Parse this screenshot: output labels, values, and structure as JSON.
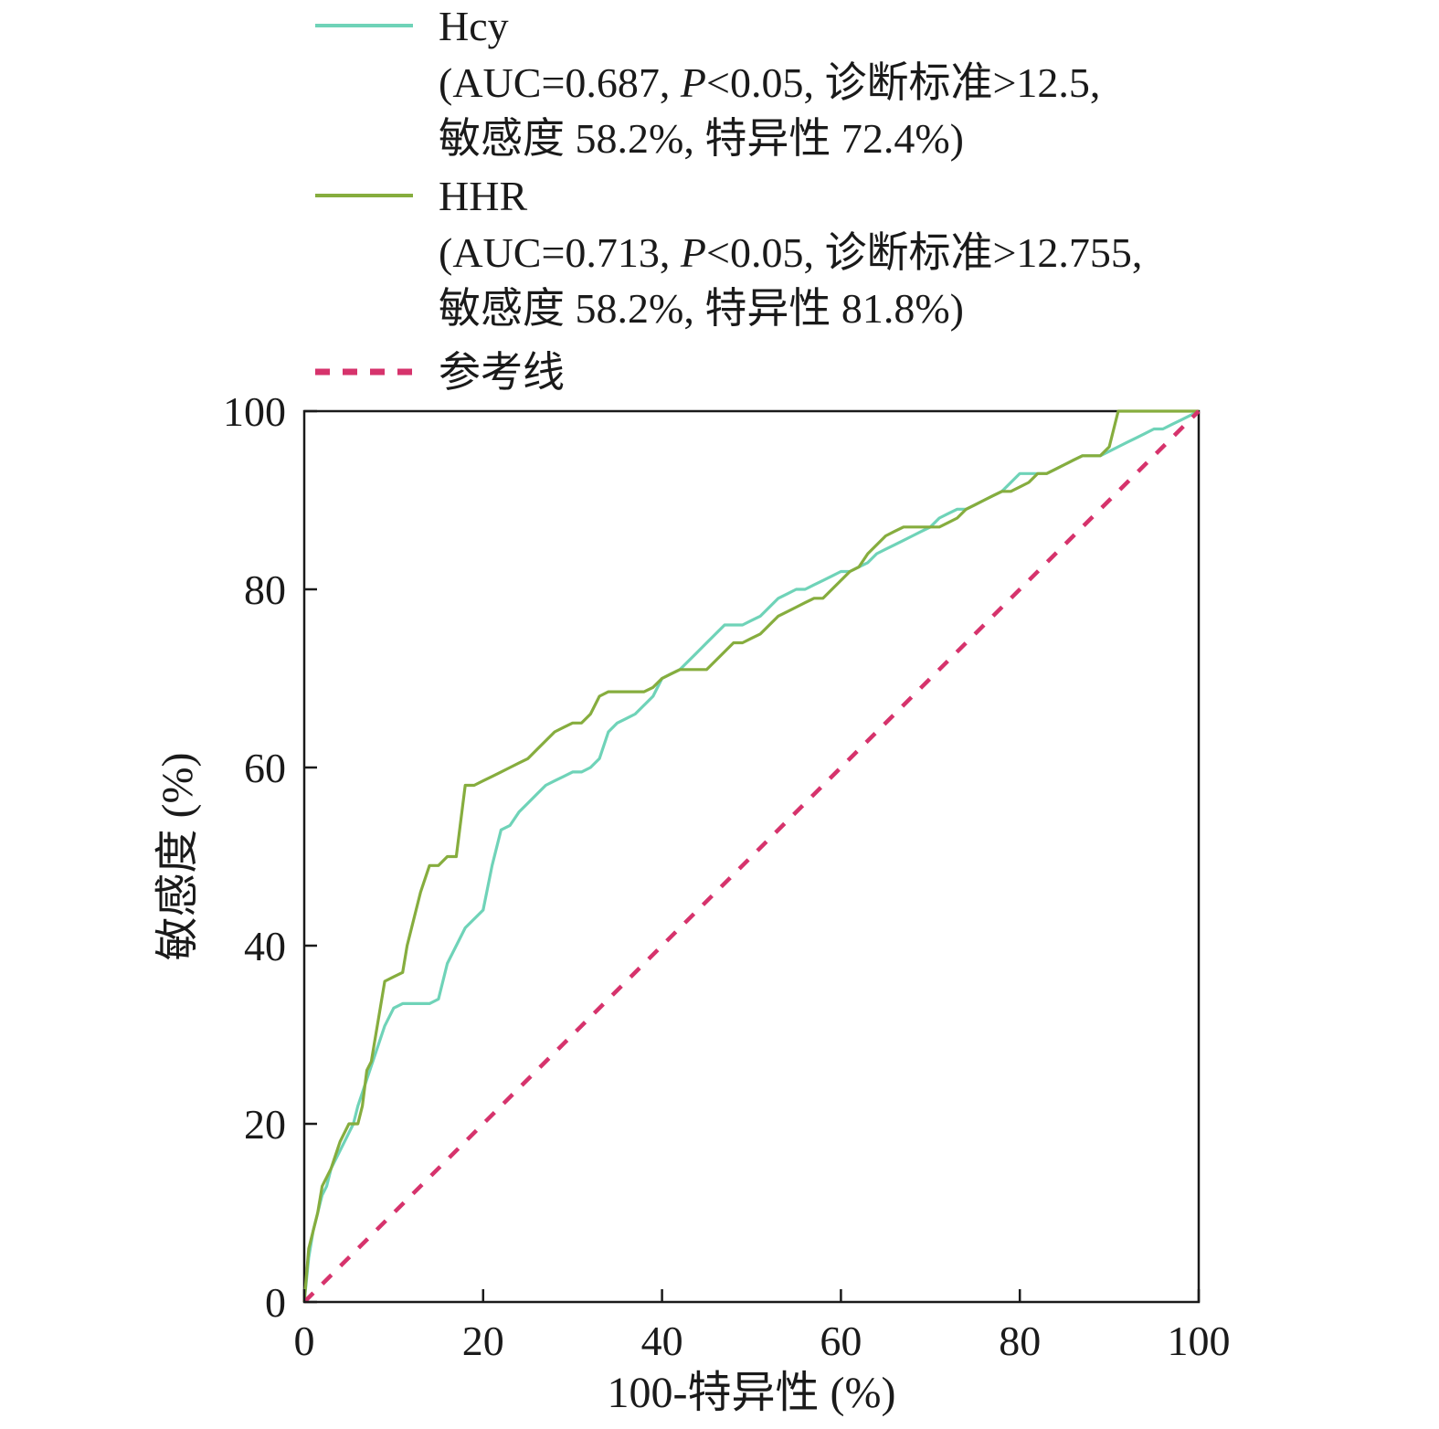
{
  "chart_data": {
    "type": "line",
    "xlabel": "100-特异性 (%)",
    "ylabel": "敏感度 (%)",
    "xlim": [
      0,
      100
    ],
    "ylim": [
      0,
      100
    ],
    "xticks": [
      "0",
      "20",
      "40",
      "60",
      "80",
      "100"
    ],
    "yticks": [
      "0",
      "20",
      "40",
      "60",
      "80",
      "100"
    ],
    "grid": false,
    "legend_position": "top",
    "series": [
      {
        "name": "Hcy",
        "legend_lines": [
          "(AUC=0.687, P<0.05, 诊断标准>12.5,",
          "敏感度 58.2%, 特异性 72.4%)"
        ],
        "color": "#6fd3b8",
        "style": "solid",
        "x": [
          0,
          0.5,
          1,
          1.5,
          2,
          2.5,
          3,
          4,
          5,
          5.5,
          6,
          7,
          8,
          9,
          10,
          11,
          12,
          13,
          14,
          15,
          16,
          17,
          18,
          19,
          20,
          21,
          22,
          23,
          24,
          25,
          26,
          27,
          28,
          29,
          30,
          31,
          32,
          33,
          34,
          35,
          36,
          37,
          38,
          39,
          40,
          41,
          42,
          43,
          44,
          45,
          46,
          47,
          48,
          49,
          50,
          51,
          52,
          53,
          54,
          55,
          56,
          57,
          58,
          59,
          60,
          61,
          62,
          63,
          64,
          65,
          66,
          67,
          68,
          69,
          70,
          71,
          72,
          73,
          74,
          75,
          76,
          77,
          78,
          79,
          80,
          81,
          82,
          83,
          84,
          85,
          86,
          87,
          88,
          89,
          90,
          91,
          92,
          93,
          94,
          95,
          96,
          97,
          98,
          99,
          100
        ],
        "y": [
          0,
          5,
          8,
          10,
          12,
          13,
          15,
          17,
          19,
          20,
          22,
          25,
          28,
          31,
          33,
          33.5,
          33.5,
          33.5,
          33.5,
          34,
          38,
          40,
          42,
          43,
          44,
          49,
          53,
          53.5,
          55,
          56,
          57,
          58,
          58.5,
          59,
          59.5,
          59.5,
          60,
          61,
          64,
          65,
          65.5,
          66,
          67,
          68,
          70,
          70.5,
          71,
          72,
          73,
          74,
          75,
          76,
          76,
          76,
          76.5,
          77,
          78,
          79,
          79.5,
          80,
          80,
          80.5,
          81,
          81.5,
          82,
          82,
          82.5,
          83,
          84,
          84.5,
          85,
          85.5,
          86,
          86.5,
          87,
          88,
          88.5,
          89,
          89,
          89.5,
          90,
          90.5,
          91,
          92,
          93,
          93,
          93,
          93,
          93.5,
          94,
          94.5,
          95,
          95,
          95,
          95.5,
          96,
          96.5,
          97,
          97.5,
          98,
          98,
          98.5,
          99,
          99.5,
          100
        ]
      },
      {
        "name": "HHR",
        "legend_lines": [
          "(AUC=0.713, P<0.05, 诊断标准>12.755,",
          "敏感度 58.2%, 特异性 81.8%)"
        ],
        "color": "#86ad3e",
        "style": "solid",
        "x": [
          0,
          0.5,
          1,
          1.5,
          2,
          3,
          4,
          5,
          6,
          6.5,
          7,
          7.5,
          8,
          8.5,
          9,
          10,
          11,
          11.5,
          12,
          12.5,
          13,
          14,
          15,
          16,
          17,
          17.5,
          18,
          19,
          20,
          21,
          22,
          23,
          24,
          25,
          26,
          27,
          28,
          29,
          30,
          31,
          32,
          33,
          34,
          35,
          36,
          37,
          38,
          39,
          40,
          41,
          42,
          43,
          44,
          45,
          46,
          47,
          48,
          49,
          50,
          51,
          52,
          53,
          54,
          55,
          56,
          57,
          58,
          59,
          60,
          61,
          62,
          63,
          64,
          65,
          66,
          67,
          68,
          69,
          70,
          71,
          72,
          73,
          74,
          75,
          76,
          77,
          78,
          79,
          80,
          81,
          82,
          83,
          84,
          85,
          86,
          87,
          88,
          89,
          90,
          90.5,
          91,
          92,
          93,
          94,
          95,
          96,
          97,
          98,
          99,
          100
        ],
        "y": [
          0,
          6,
          8,
          10,
          13,
          15,
          18,
          20,
          20,
          22,
          26,
          27,
          30,
          33,
          36,
          36.5,
          37,
          40,
          42,
          44,
          46,
          49,
          49,
          50,
          50,
          54,
          58,
          58,
          58.5,
          59,
          59.5,
          60,
          60.5,
          61,
          62,
          63,
          64,
          64.5,
          65,
          65,
          66,
          68,
          68.5,
          68.5,
          68.5,
          68.5,
          68.5,
          69,
          70,
          70.5,
          71,
          71,
          71,
          71,
          72,
          73,
          74,
          74,
          74.5,
          75,
          76,
          77,
          77.5,
          78,
          78.5,
          79,
          79,
          80,
          81,
          82,
          82.5,
          84,
          85,
          86,
          86.5,
          87,
          87,
          87,
          87,
          87,
          87.5,
          88,
          89,
          89.5,
          90,
          90.5,
          91,
          91,
          91.5,
          92,
          93,
          93,
          93.5,
          94,
          94.5,
          95,
          95,
          95,
          96,
          98,
          100,
          100,
          100,
          100,
          100,
          100,
          100,
          100,
          100,
          100
        ]
      },
      {
        "name": "参考线",
        "legend_lines": [],
        "color": "#d6336c",
        "style": "dashed",
        "x": [
          0,
          100
        ],
        "y": [
          0,
          100
        ]
      }
    ]
  }
}
